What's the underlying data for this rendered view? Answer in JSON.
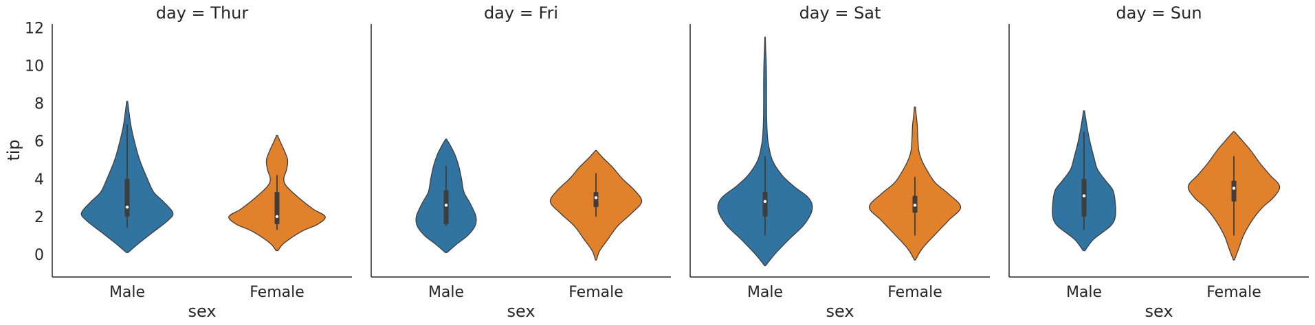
{
  "colors": {
    "Male": "#3274a1",
    "Female": "#e1812c",
    "box": "#3d3d3d",
    "axis": "#262626"
  },
  "chart_data": {
    "type": "violin",
    "facet_column": "day",
    "xlabel": "sex",
    "ylabel": "tip",
    "categories": [
      "Male",
      "Female"
    ],
    "ylim": [
      -1.2,
      12.2
    ],
    "yticks": [
      0,
      2,
      4,
      6,
      8,
      10,
      12
    ],
    "grid": false,
    "panels": [
      {
        "title": "day = Thur",
        "violins": [
          {
            "category": "Male",
            "ymin": 0.1,
            "ymax": 8.1,
            "profile": [
              [
                0.1,
                0.02
              ],
              [
                0.6,
                0.25
              ],
              [
                1.2,
                0.55
              ],
              [
                1.8,
                0.85
              ],
              [
                2.2,
                0.95
              ],
              [
                2.8,
                0.75
              ],
              [
                3.3,
                0.55
              ],
              [
                4.0,
                0.42
              ],
              [
                5.0,
                0.26
              ],
              [
                6.0,
                0.15
              ],
              [
                6.8,
                0.08
              ],
              [
                7.5,
                0.04
              ],
              [
                8.1,
                0.01
              ]
            ],
            "q1": 2.0,
            "median": 2.5,
            "q3": 4.0,
            "wmin": 1.4,
            "wmax": 6.9
          },
          {
            "category": "Female",
            "ymin": 0.2,
            "ymax": 6.3,
            "profile": [
              [
                0.2,
                0.02
              ],
              [
                0.6,
                0.15
              ],
              [
                1.2,
                0.5
              ],
              [
                1.6,
                0.85
              ],
              [
                2.0,
                1.0
              ],
              [
                2.4,
                0.75
              ],
              [
                3.0,
                0.45
              ],
              [
                3.6,
                0.2
              ],
              [
                4.0,
                0.14
              ],
              [
                4.5,
                0.2
              ],
              [
                5.0,
                0.22
              ],
              [
                5.5,
                0.15
              ],
              [
                6.0,
                0.06
              ],
              [
                6.3,
                0.01
              ]
            ],
            "q1": 1.6,
            "median": 2.0,
            "q3": 3.3,
            "wmin": 1.3,
            "wmax": 4.2
          }
        ]
      },
      {
        "title": "day = Fri",
        "violins": [
          {
            "category": "Male",
            "ymin": 0.1,
            "ymax": 6.1,
            "profile": [
              [
                0.1,
                0.02
              ],
              [
                0.5,
                0.2
              ],
              [
                1.0,
                0.45
              ],
              [
                1.5,
                0.6
              ],
              [
                2.0,
                0.62
              ],
              [
                2.7,
                0.5
              ],
              [
                3.3,
                0.37
              ],
              [
                4.0,
                0.32
              ],
              [
                4.7,
                0.26
              ],
              [
                5.3,
                0.18
              ],
              [
                5.8,
                0.08
              ],
              [
                6.1,
                0.01
              ]
            ],
            "q1": 1.6,
            "median": 2.6,
            "q3": 3.4,
            "wmin": 1.5,
            "wmax": 4.7
          },
          {
            "category": "Female",
            "ymin": -0.3,
            "ymax": 5.5,
            "profile": [
              [
                -0.3,
                0.01
              ],
              [
                0.2,
                0.08
              ],
              [
                0.8,
                0.25
              ],
              [
                1.5,
                0.45
              ],
              [
                2.2,
                0.75
              ],
              [
                2.8,
                0.95
              ],
              [
                3.4,
                0.8
              ],
              [
                4.0,
                0.55
              ],
              [
                4.6,
                0.35
              ],
              [
                5.1,
                0.15
              ],
              [
                5.5,
                0.01
              ]
            ],
            "q1": 2.5,
            "median": 3.0,
            "q3": 3.3,
            "wmin": 2.0,
            "wmax": 4.3
          }
        ]
      },
      {
        "title": "day = Sat",
        "violins": [
          {
            "category": "Male",
            "ymin": -0.6,
            "ymax": 11.5,
            "profile": [
              [
                -0.6,
                0.01
              ],
              [
                0.0,
                0.2
              ],
              [
                0.8,
                0.5
              ],
              [
                1.6,
                0.82
              ],
              [
                2.4,
                0.98
              ],
              [
                3.0,
                0.9
              ],
              [
                3.6,
                0.6
              ],
              [
                4.2,
                0.35
              ],
              [
                5.0,
                0.15
              ],
              [
                6.0,
                0.06
              ],
              [
                7.0,
                0.035
              ],
              [
                8.0,
                0.03
              ],
              [
                9.0,
                0.03
              ],
              [
                10.0,
                0.025
              ],
              [
                11.0,
                0.01
              ],
              [
                11.5,
                0.005
              ]
            ],
            "q1": 2.0,
            "median": 2.8,
            "q3": 3.3,
            "wmin": 1.0,
            "wmax": 5.2
          },
          {
            "category": "Female",
            "ymin": -0.3,
            "ymax": 7.8,
            "profile": [
              [
                -0.3,
                0.01
              ],
              [
                0.3,
                0.15
              ],
              [
                1.0,
                0.4
              ],
              [
                1.8,
                0.7
              ],
              [
                2.5,
                0.95
              ],
              [
                3.2,
                0.7
              ],
              [
                3.8,
                0.42
              ],
              [
                4.5,
                0.24
              ],
              [
                5.0,
                0.14
              ],
              [
                5.5,
                0.08
              ],
              [
                6.2,
                0.06
              ],
              [
                6.8,
                0.05
              ],
              [
                7.4,
                0.025
              ],
              [
                7.8,
                0.01
              ]
            ],
            "q1": 2.2,
            "median": 2.6,
            "q3": 3.1,
            "wmin": 1.0,
            "wmax": 4.1
          }
        ]
      },
      {
        "title": "day = Sun",
        "violins": [
          {
            "category": "Male",
            "ymin": 0.2,
            "ymax": 7.6,
            "profile": [
              [
                0.2,
                0.02
              ],
              [
                0.8,
                0.2
              ],
              [
                1.5,
                0.55
              ],
              [
                2.0,
                0.65
              ],
              [
                2.7,
                0.65
              ],
              [
                3.4,
                0.6
              ],
              [
                3.9,
                0.45
              ],
              [
                4.5,
                0.28
              ],
              [
                5.2,
                0.2
              ],
              [
                6.0,
                0.12
              ],
              [
                6.8,
                0.06
              ],
              [
                7.6,
                0.01
              ]
            ],
            "q1": 2.0,
            "median": 3.1,
            "q3": 4.0,
            "wmin": 1.3,
            "wmax": 6.5
          },
          {
            "category": "Female",
            "ymin": -0.3,
            "ymax": 6.5,
            "profile": [
              [
                -0.3,
                0.01
              ],
              [
                0.3,
                0.1
              ],
              [
                1.0,
                0.2
              ],
              [
                1.8,
                0.38
              ],
              [
                2.5,
                0.6
              ],
              [
                3.0,
                0.82
              ],
              [
                3.6,
                0.95
              ],
              [
                4.2,
                0.75
              ],
              [
                4.8,
                0.55
              ],
              [
                5.5,
                0.35
              ],
              [
                6.1,
                0.15
              ],
              [
                6.5,
                0.01
              ]
            ],
            "q1": 2.8,
            "median": 3.5,
            "q3": 3.9,
            "wmin": 1.0,
            "wmax": 5.2
          }
        ]
      }
    ]
  }
}
